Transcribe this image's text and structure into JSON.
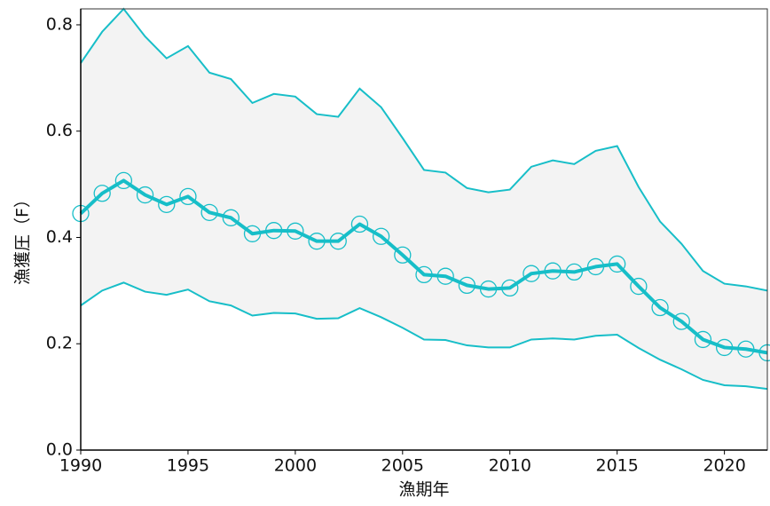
{
  "chart_data": {
    "type": "line",
    "x": [
      1990,
      1991,
      1992,
      1993,
      1994,
      1995,
      1996,
      1997,
      1998,
      1999,
      2000,
      2001,
      2002,
      2003,
      2004,
      2005,
      2006,
      2007,
      2008,
      2009,
      2010,
      2011,
      2012,
      2013,
      2014,
      2015,
      2016,
      2017,
      2018,
      2019,
      2020,
      2021,
      2022
    ],
    "series": [
      {
        "color": "#17bec8",
        "values": [
          0.445,
          0.483,
          0.507,
          0.48,
          0.462,
          0.477,
          0.447,
          0.437,
          0.407,
          0.413,
          0.412,
          0.393,
          0.393,
          0.425,
          0.402,
          0.367,
          0.33,
          0.327,
          0.31,
          0.303,
          0.305,
          0.332,
          0.337,
          0.335,
          0.345,
          0.35,
          0.308,
          0.268,
          0.242,
          0.208,
          0.193,
          0.19,
          0.183
        ]
      }
    ],
    "band": {
      "color": "#17bec8",
      "fill": "#f3f3f3",
      "upper": [
        0.728,
        0.787,
        0.83,
        0.778,
        0.737,
        0.76,
        0.71,
        0.698,
        0.653,
        0.67,
        0.665,
        0.632,
        0.627,
        0.68,
        0.645,
        0.587,
        0.527,
        0.522,
        0.493,
        0.485,
        0.49,
        0.533,
        0.545,
        0.538,
        0.563,
        0.572,
        0.495,
        0.43,
        0.388,
        0.337,
        0.313,
        0.308,
        0.3
      ],
      "lower": [
        0.272,
        0.3,
        0.315,
        0.298,
        0.292,
        0.302,
        0.28,
        0.272,
        0.253,
        0.258,
        0.257,
        0.247,
        0.248,
        0.267,
        0.25,
        0.23,
        0.208,
        0.207,
        0.197,
        0.193,
        0.193,
        0.208,
        0.21,
        0.208,
        0.215,
        0.217,
        0.192,
        0.17,
        0.152,
        0.132,
        0.122,
        0.12,
        0.115
      ]
    },
    "xlabel": "漁期年",
    "ylabel": "漁獲圧（F）",
    "xlim": [
      1990,
      2022
    ],
    "ylim": [
      0,
      0.83
    ],
    "xticks": [
      1990,
      1995,
      2000,
      2005,
      2010,
      2015,
      2020
    ],
    "yticks": [
      {
        "value": 0,
        "label": "0.0"
      },
      0.2,
      0.4,
      0.6,
      0.8
    ]
  }
}
